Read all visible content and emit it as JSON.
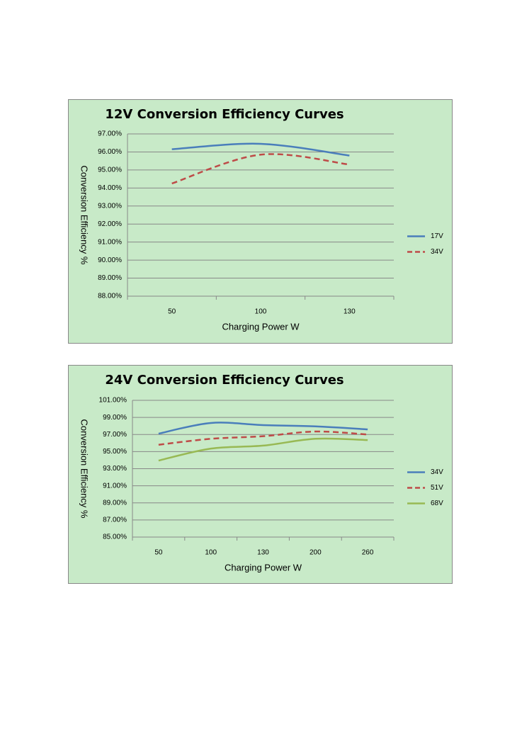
{
  "chart_data": [
    {
      "type": "line",
      "title": "12V Conversion Efficiency Curves",
      "x_label": "Charging Power W",
      "y_label": "Conversion Efficiency %",
      "categories": [
        "50",
        "100",
        "130"
      ],
      "series": [
        {
          "name": "17V",
          "color": "#4a7ebb",
          "line_style": "solid",
          "values": [
            96.15,
            96.45,
            95.8
          ]
        },
        {
          "name": "34V",
          "color": "#be4b48",
          "line_style": "dashed",
          "values": [
            94.25,
            95.85,
            95.3
          ]
        }
      ],
      "ylim": [
        88,
        97
      ],
      "yticks": [
        {
          "value": 88,
          "label": "88.00%"
        },
        {
          "value": 89,
          "label": "89.00%"
        },
        {
          "value": 90,
          "label": "90.00%"
        },
        {
          "value": 91,
          "label": "91.00%"
        },
        {
          "value": 92,
          "label": "92.00%"
        },
        {
          "value": 93,
          "label": "93.00%"
        },
        {
          "value": 94,
          "label": "94.00%"
        },
        {
          "value": 95,
          "label": "95.00%"
        },
        {
          "value": 96,
          "label": "96.00%"
        },
        {
          "value": 97,
          "label": "97.00%"
        }
      ],
      "grid": true,
      "legend": "right",
      "smooth": true
    },
    {
      "type": "line",
      "title": "24V Conversion Efficiency Curves",
      "x_label": "Charging Power W",
      "y_label": "Conversion Efficiency %",
      "categories": [
        "50",
        "100",
        "130",
        "200",
        "260"
      ],
      "series": [
        {
          "name": "34V",
          "color": "#4a7ebb",
          "line_style": "solid",
          "values": [
            97.1,
            98.35,
            98.1,
            97.95,
            97.6
          ]
        },
        {
          "name": "51V",
          "color": "#be4b48",
          "line_style": "dashed",
          "values": [
            95.8,
            96.5,
            96.8,
            97.35,
            97.0
          ]
        },
        {
          "name": "68V",
          "color": "#98b954",
          "line_style": "solid",
          "values": [
            93.95,
            95.35,
            95.7,
            96.5,
            96.35
          ]
        }
      ],
      "ylim": [
        85,
        101
      ],
      "yticks": [
        {
          "value": 85,
          "label": "85.00%"
        },
        {
          "value": 87,
          "label": "87.00%"
        },
        {
          "value": 89,
          "label": "89.00%"
        },
        {
          "value": 91,
          "label": "91.00%"
        },
        {
          "value": 93,
          "label": "93.00%"
        },
        {
          "value": 95,
          "label": "95.00%"
        },
        {
          "value": 97,
          "label": "97.00%"
        },
        {
          "value": 99,
          "label": "99.00%"
        },
        {
          "value": 101,
          "label": "101.00%"
        }
      ],
      "grid": true,
      "legend": "right",
      "smooth": true
    }
  ]
}
